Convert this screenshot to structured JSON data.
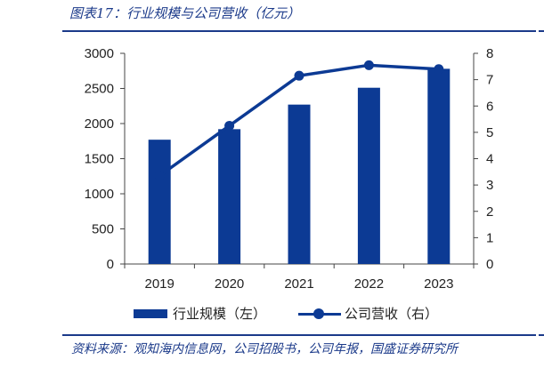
{
  "title": "图表17：行业规模与公司营收（亿元）",
  "source": "资料来源：观知海内信息网，公司招股书，公司年报，国盛证券研究所",
  "colors": {
    "bar": "#0c3a94",
    "line": "#0c3a94",
    "rule": "#1b3a8a"
  },
  "chart_data": {
    "type": "bar",
    "categories": [
      "2019",
      "2020",
      "2021",
      "2022",
      "2023"
    ],
    "series": [
      {
        "name": "行业规模（左）",
        "type": "bar",
        "axis": "left",
        "values": [
          1770,
          1920,
          2270,
          2510,
          2780
        ]
      },
      {
        "name": "公司营收（右）",
        "type": "line",
        "axis": "right",
        "values": [
          3.35,
          5.25,
          7.15,
          7.55,
          7.4
        ]
      }
    ],
    "y_left": {
      "ylim": [
        0,
        3000
      ],
      "ticks": [
        "0",
        "500",
        "1000",
        "1500",
        "2000",
        "2500",
        "3000"
      ]
    },
    "y_right": {
      "ylim": [
        0,
        8
      ],
      "ticks": [
        "0",
        "1",
        "2",
        "3",
        "4",
        "5",
        "6",
        "7",
        "8"
      ]
    },
    "legend": "bottom",
    "grid": false
  }
}
